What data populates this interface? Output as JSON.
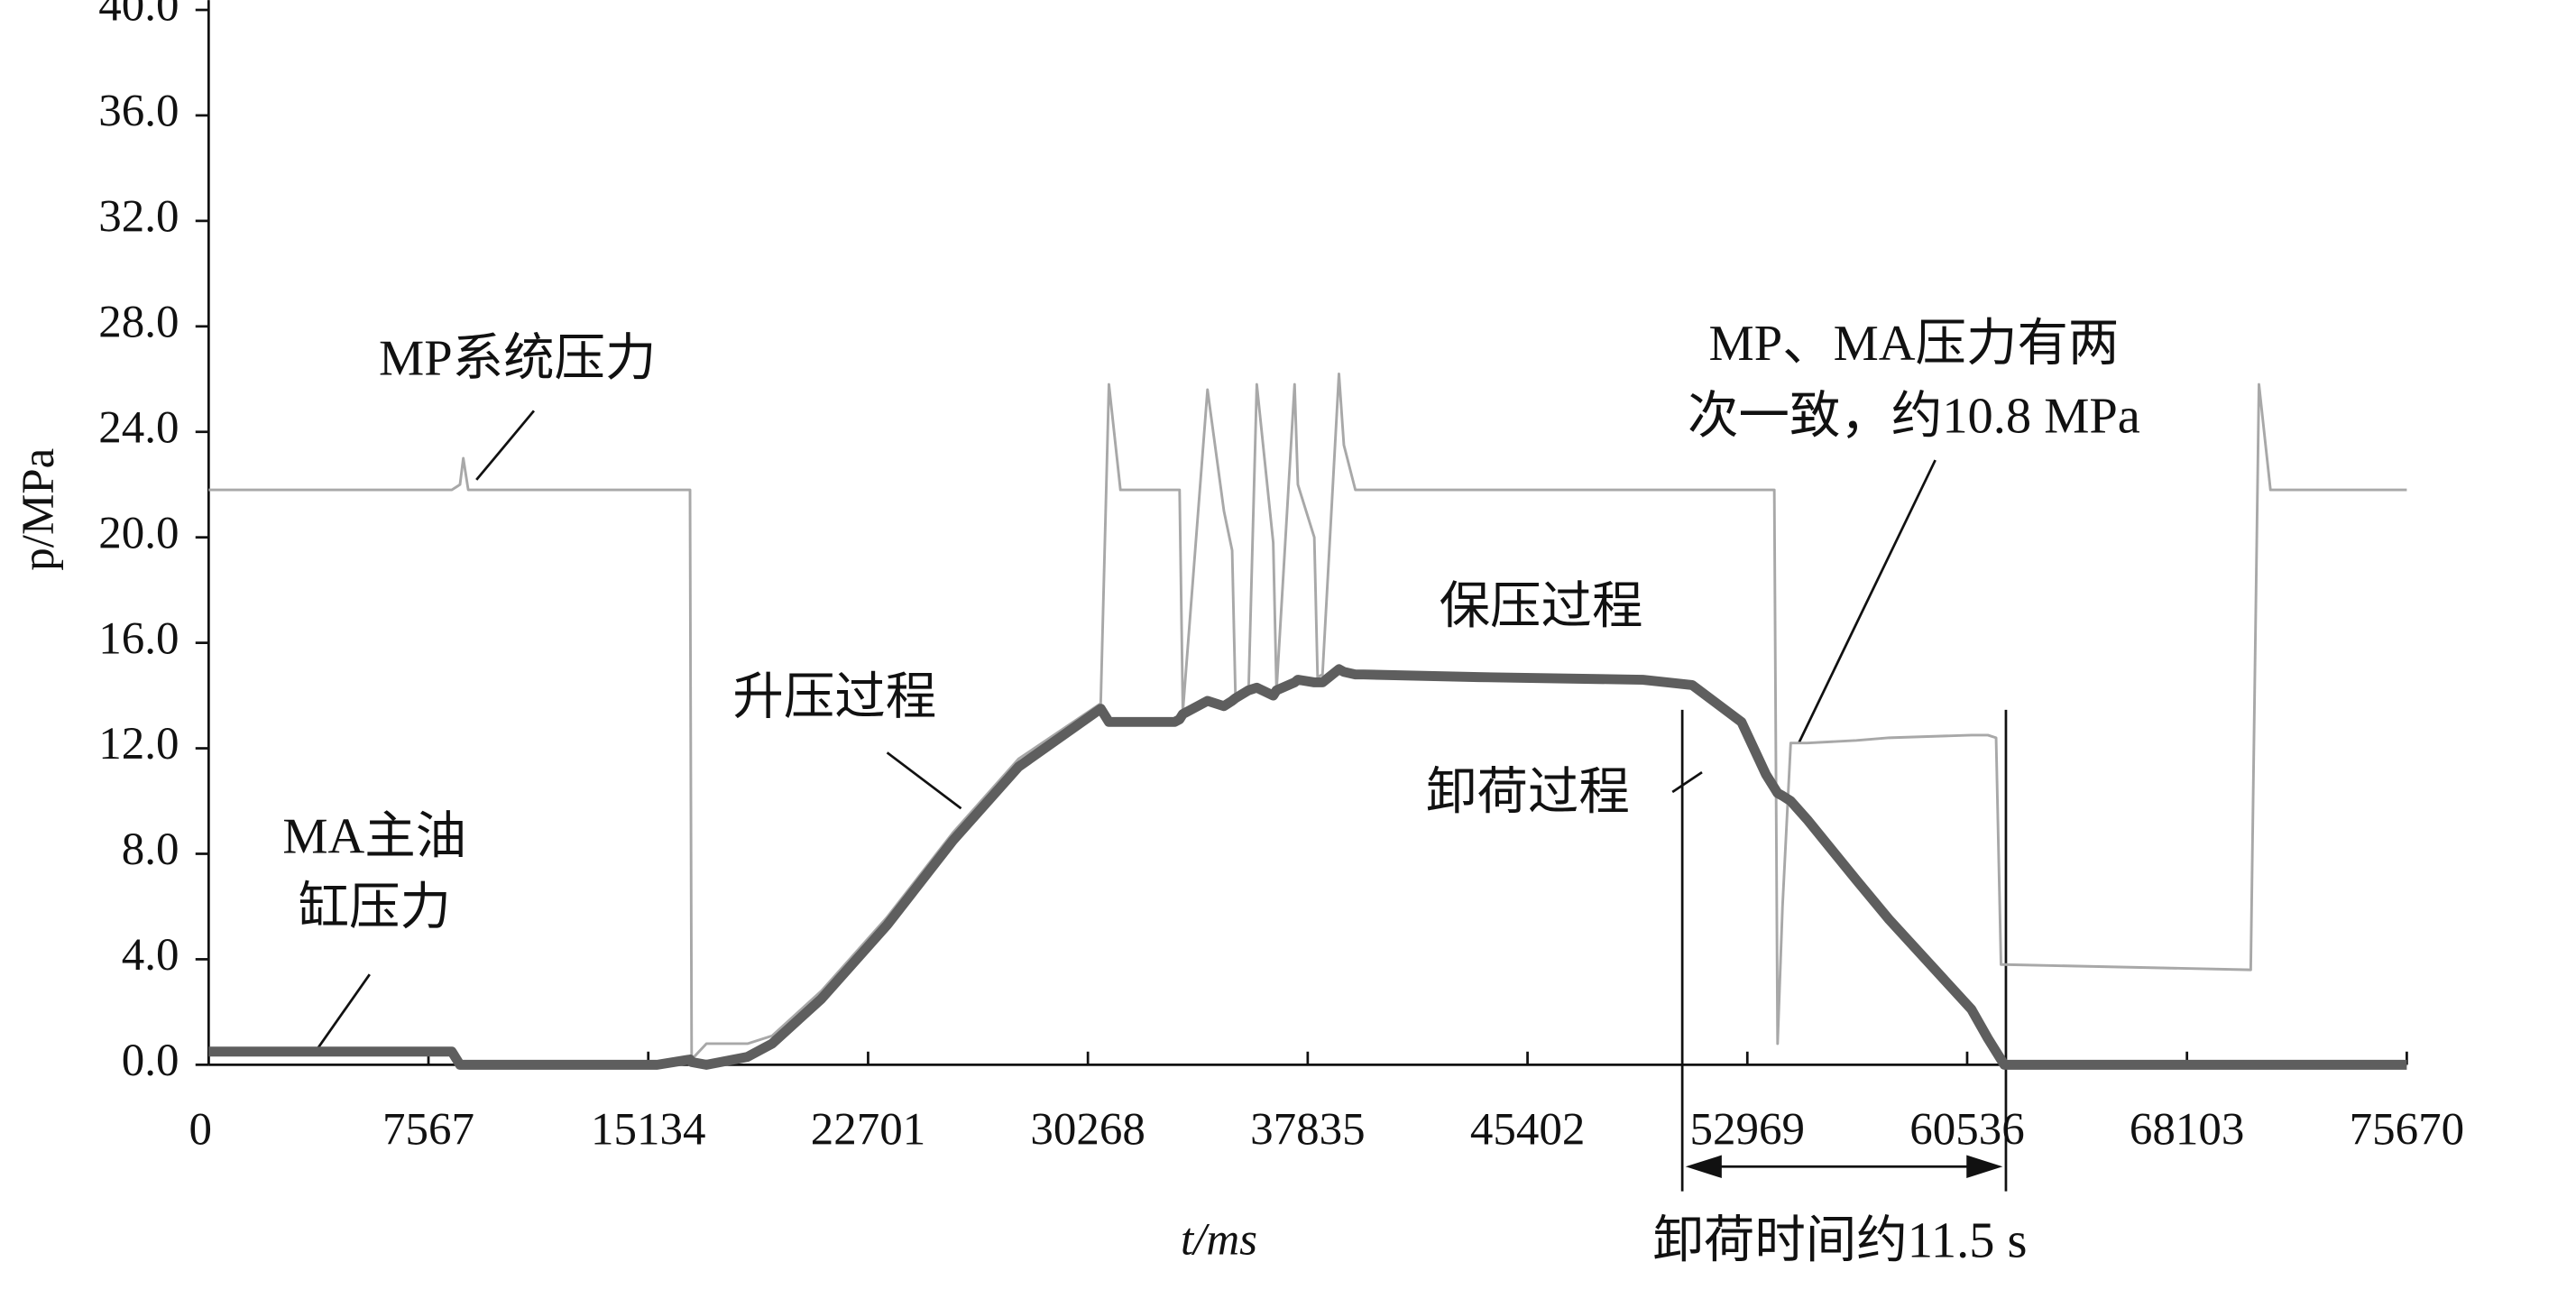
{
  "chart_data": {
    "type": "line",
    "xlabel": "t/ms",
    "ylabel": "p/MPa",
    "xlim": [
      0,
      75670
    ],
    "ylim": [
      0,
      40
    ],
    "xticks": [
      0,
      7567,
      15134,
      22701,
      30268,
      37835,
      45402,
      52969,
      60536,
      68103,
      75670
    ],
    "yticks": [
      {
        "value": 0,
        "label": "0.0"
      },
      {
        "value": 4,
        "label": "4.0"
      },
      {
        "value": 8,
        "label": "8.0"
      },
      {
        "value": 12,
        "label": "12.0"
      },
      {
        "value": 16,
        "label": "16.0"
      },
      {
        "value": 20,
        "label": "20.0"
      },
      {
        "value": 24,
        "label": "24.0"
      },
      {
        "value": 28,
        "label": "28.0"
      },
      {
        "value": 32,
        "label": "32.0"
      },
      {
        "value": 36,
        "label": "36.0"
      },
      {
        "value": 40,
        "label": "40.0"
      }
    ],
    "x": [
      0,
      8370,
      8653,
      8766,
      8936,
      15440,
      16571,
      16627,
      17136,
      18550,
      19398,
      21095,
      23357,
      25619,
      27882,
      30709,
      30992,
      31388,
      33254,
      33424,
      33537,
      34385,
      34951,
      35234,
      35347,
      35799,
      36082,
      36648,
      36761,
      37383,
      37496,
      38062,
      38175,
      38344,
      38910,
      39080,
      39475,
      39758,
      43717,
      49373,
      51069,
      52766,
      53614,
      53897,
      54010,
      54180,
      54462,
      55028,
      56725,
      57856,
      60683,
      61249,
      61532,
      61701,
      61815,
      70298,
      70581,
      70977,
      75670
    ],
    "series": [
      {
        "color": "#a8a8a8",
        "width": 1.6,
        "values": [
          21.8,
          21.8,
          22.0,
          23.0,
          21.8,
          21.8,
          21.8,
          0.2,
          0.8,
          0.8,
          1.1,
          2.8,
          5.6,
          8.8,
          11.6,
          13.7,
          25.8,
          21.8,
          21.8,
          21.8,
          13.4,
          25.6,
          21.0,
          19.5,
          14.0,
          14.2,
          25.8,
          19.8,
          14.2,
          25.8,
          22.0,
          20.0,
          14.7,
          14.8,
          26.2,
          23.5,
          21.8,
          21.8,
          21.8,
          21.8,
          21.8,
          21.8,
          21.8,
          21.8,
          0.8,
          6.0,
          12.2,
          12.2,
          12.3,
          12.4,
          12.5,
          12.5,
          12.4,
          3.8,
          3.8,
          3.6,
          25.8,
          21.8,
          21.8
        ]
      },
      {
        "color": "#5e5e5e",
        "width": 6,
        "values": [
          0.5,
          0.5,
          0,
          0,
          0,
          0,
          0.2,
          0.1,
          0,
          0.3,
          0.8,
          2.5,
          5.3,
          8.5,
          11.3,
          13.5,
          13.0,
          13.0,
          13.0,
          13.1,
          13.3,
          13.8,
          13.6,
          13.8,
          13.9,
          14.2,
          14.3,
          14.0,
          14.2,
          14.5,
          14.6,
          14.5,
          14.5,
          14.5,
          15.0,
          14.9,
          14.8,
          14.8,
          14.7,
          14.6,
          14.4,
          13.0,
          11.0,
          10.5,
          10.3,
          10.2,
          10.0,
          9.3,
          7.0,
          5.5,
          2.1,
          1.0,
          0.5,
          0.2,
          0,
          0,
          0,
          0,
          0
        ]
      }
    ],
    "annotations": [
      {
        "lines": [
          "MP系统压力"
        ]
      },
      {
        "lines": [
          "MA主油",
          "缸压力"
        ]
      },
      {
        "lines": [
          "升压过程"
        ]
      },
      {
        "lines": [
          "保压过程"
        ]
      },
      {
        "lines": [
          "MP、MA压力有两",
          "次一致，约10.8 MPa"
        ]
      },
      {
        "lines": [
          "卸荷过程"
        ]
      },
      {
        "lines": [
          "卸荷时间约11.5 s"
        ]
      }
    ]
  }
}
